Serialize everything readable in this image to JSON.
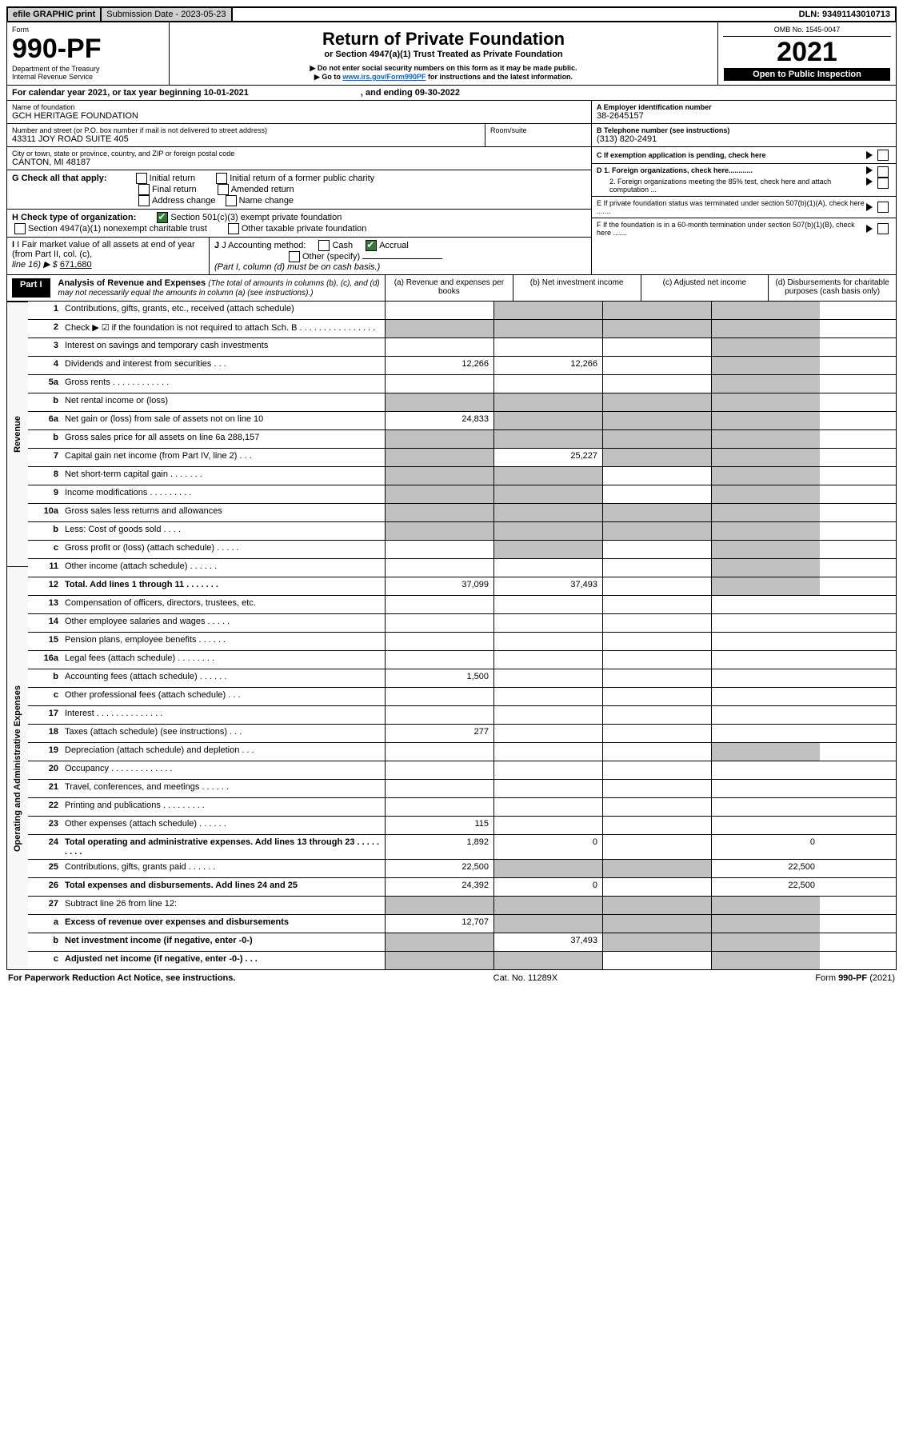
{
  "topbar": {
    "efile_label": "efile GRAPHIC print",
    "submission_label": "Submission Date - 2023-05-23",
    "dln_label": "DLN: 93491143010713"
  },
  "header": {
    "form_word": "Form",
    "form_no": "990-PF",
    "dept": "Department of the Treasury",
    "irs": "Internal Revenue Service",
    "title": "Return of Private Foundation",
    "subtitle": "or Section 4947(a)(1) Trust Treated as Private Foundation",
    "instr1": "▶ Do not enter social security numbers on this form as it may be made public.",
    "instr2_pre": "▶ Go to ",
    "instr2_link": "www.irs.gov/Form990PF",
    "instr2_post": " for instructions and the latest information.",
    "omb": "OMB No. 1545-0047",
    "year": "2021",
    "open": "Open to Public Inspection"
  },
  "cal": {
    "line": "For calendar year 2021, or tax year beginning 10-01-2021",
    "mid": ", and ending 09-30-2022"
  },
  "foundation": {
    "name_label": "Name of foundation",
    "name": "GCH HERITAGE FOUNDATION",
    "addr_label": "Number and street (or P.O. box number if mail is not delivered to street address)",
    "addr": "43311 JOY ROAD SUITE 405",
    "room_label": "Room/suite",
    "city_label": "City or town, state or province, country, and ZIP or foreign postal code",
    "city": "CANTON, MI  48187",
    "a_label": "A Employer identification number",
    "a_val": "38-2645157",
    "b_label": "B Telephone number (see instructions)",
    "b_val": "(313) 820-2491",
    "c_label": "C If exemption application is pending, check here",
    "d1": "D 1. Foreign organizations, check here............",
    "d2": "2. Foreign organizations meeting the 85% test, check here and attach computation ...",
    "e": "E  If private foundation status was terminated under section 507(b)(1)(A), check here .......",
    "f": "F  If the foundation is in a 60-month termination under section 507(b)(1)(B), check here .......",
    "g_label": "G Check all that apply:",
    "g_opts": [
      "Initial return",
      "Initial return of a former public charity",
      "Final return",
      "Amended return",
      "Address change",
      "Name change"
    ],
    "h_label": "H Check type of organization:",
    "h1": "Section 501(c)(3) exempt private foundation",
    "h2": "Section 4947(a)(1) nonexempt charitable trust",
    "h3": "Other taxable private foundation",
    "i_label": "I Fair market value of all assets at end of year (from Part II, col. (c),",
    "i_line": "line 16) ▶ $",
    "i_val": "671,680",
    "j_label": "J Accounting method:",
    "j_cash": "Cash",
    "j_accrual": "Accrual",
    "j_other": "Other (specify)",
    "j_note": "(Part I, column (d) must be on cash basis.)"
  },
  "part1": {
    "tag": "Part I",
    "title": "Analysis of Revenue and Expenses",
    "title_note": " (The total of amounts in columns (b), (c), and (d) may not necessarily equal the amounts in column (a) (see instructions).)",
    "col_a": "(a)  Revenue and expenses per books",
    "col_b": "(b)  Net investment income",
    "col_c": "(c)  Adjusted net income",
    "col_d": "(d)  Disbursements for charitable purposes (cash basis only)"
  },
  "sidelabels": {
    "rev": "Revenue",
    "op": "Operating and Administrative Expenses"
  },
  "lines": [
    {
      "n": "1",
      "d": "Contributions, gifts, grants, etc., received (attach schedule)",
      "a": "",
      "b": "gray",
      "c": "gray",
      "dd": "gray"
    },
    {
      "n": "2",
      "d": "Check ▶ ☑ if the foundation is not required to attach Sch. B  .  .  .  .  .  .  .  .  .  .  .  .  .  .  .  .",
      "a": "gray",
      "b": "gray",
      "c": "gray",
      "dd": "gray",
      "bold_not": true
    },
    {
      "n": "3",
      "d": "Interest on savings and temporary cash investments",
      "a": "",
      "b": "",
      "c": "",
      "dd": "gray"
    },
    {
      "n": "4",
      "d": "Dividends and interest from securities  .  .  .",
      "a": "12,266",
      "b": "12,266",
      "c": "",
      "dd": "gray"
    },
    {
      "n": "5a",
      "d": "Gross rents  .  .  .  .  .  .  .  .  .  .  .  .",
      "a": "",
      "b": "",
      "c": "",
      "dd": "gray"
    },
    {
      "n": "b",
      "d": "Net rental income or (loss)  ",
      "a": "gray",
      "b": "gray",
      "c": "gray",
      "dd": "gray"
    },
    {
      "n": "6a",
      "d": "Net gain or (loss) from sale of assets not on line 10",
      "a": "24,833",
      "b": "gray",
      "c": "gray",
      "dd": "gray"
    },
    {
      "n": "b",
      "d": "Gross sales price for all assets on line 6a                   288,157",
      "a": "gray",
      "b": "gray",
      "c": "gray",
      "dd": "gray"
    },
    {
      "n": "7",
      "d": "Capital gain net income (from Part IV, line 2)  .  .  .",
      "a": "gray",
      "b": "25,227",
      "c": "gray",
      "dd": "gray"
    },
    {
      "n": "8",
      "d": "Net short-term capital gain  .  .  .  .  .  .  .",
      "a": "gray",
      "b": "gray",
      "c": "",
      "dd": "gray"
    },
    {
      "n": "9",
      "d": "Income modifications  .  .  .  .  .  .  .  .  .",
      "a": "gray",
      "b": "gray",
      "c": "",
      "dd": "gray"
    },
    {
      "n": "10a",
      "d": "Gross sales less returns and allowances",
      "a": "gray",
      "b": "gray",
      "c": "gray",
      "dd": "gray"
    },
    {
      "n": "b",
      "d": "Less: Cost of goods sold  .  .  .  .",
      "a": "gray",
      "b": "gray",
      "c": "gray",
      "dd": "gray"
    },
    {
      "n": "c",
      "d": "Gross profit or (loss) (attach schedule)  .  .  .  .  .",
      "a": "",
      "b": "gray",
      "c": "",
      "dd": "gray"
    },
    {
      "n": "11",
      "d": "Other income (attach schedule)  .  .  .  .  .  .",
      "a": "",
      "b": "",
      "c": "",
      "dd": "gray"
    },
    {
      "n": "12",
      "d": "Total. Add lines 1 through 11  .  .  .  .  .  .  .",
      "a": "37,099",
      "b": "37,493",
      "c": "",
      "dd": "gray",
      "bold": true
    }
  ],
  "exp": [
    {
      "n": "13",
      "d": "Compensation of officers, directors, trustees, etc."
    },
    {
      "n": "14",
      "d": "Other employee salaries and wages  .  .  .  .  ."
    },
    {
      "n": "15",
      "d": "Pension plans, employee benefits  .  .  .  .  .  ."
    },
    {
      "n": "16a",
      "d": "Legal fees (attach schedule)  .  .  .  .  .  .  .  ."
    },
    {
      "n": "b",
      "d": "Accounting fees (attach schedule)  .  .  .  .  .  .",
      "a": "1,500"
    },
    {
      "n": "c",
      "d": "Other professional fees (attach schedule)  .  .  ."
    },
    {
      "n": "17",
      "d": "Interest  .  .  .  .  .  .  .  .  .  .  .  .  .  ."
    },
    {
      "n": "18",
      "d": "Taxes (attach schedule) (see instructions)  .  .  .",
      "a": "277"
    },
    {
      "n": "19",
      "d": "Depreciation (attach schedule) and depletion  .  .  .",
      "dd": "gray"
    },
    {
      "n": "20",
      "d": "Occupancy  .  .  .  .  .  .  .  .  .  .  .  .  ."
    },
    {
      "n": "21",
      "d": "Travel, conferences, and meetings  .  .  .  .  .  ."
    },
    {
      "n": "22",
      "d": "Printing and publications  .  .  .  .  .  .  .  .  ."
    },
    {
      "n": "23",
      "d": "Other expenses (attach schedule)  .  .  .  .  .  .",
      "a": "115"
    },
    {
      "n": "24",
      "d": "Total operating and administrative expenses. Add lines 13 through 23  .  .  .  .  .  .  .  .  .",
      "a": "1,892",
      "b": "0",
      "dd": "0",
      "bold": true
    },
    {
      "n": "25",
      "d": "Contributions, gifts, grants paid  .  .  .  .  .  .",
      "a": "22,500",
      "b": "gray",
      "c": "gray",
      "dd": "22,500"
    },
    {
      "n": "26",
      "d": "Total expenses and disbursements. Add lines 24 and 25",
      "a": "24,392",
      "b": "0",
      "dd": "22,500",
      "bold": true
    }
  ],
  "net": [
    {
      "n": "27",
      "d": "Subtract line 26 from line 12:",
      "a": "gray",
      "b": "gray",
      "c": "gray",
      "dd": "gray"
    },
    {
      "n": "a",
      "d": "Excess of revenue over expenses and disbursements",
      "a": "12,707",
      "b": "gray",
      "c": "gray",
      "dd": "gray",
      "bold": true
    },
    {
      "n": "b",
      "d": "Net investment income (if negative, enter -0-)",
      "a": "gray",
      "b": "37,493",
      "c": "gray",
      "dd": "gray",
      "bold": true
    },
    {
      "n": "c",
      "d": "Adjusted net income (if negative, enter -0-)  .  .  .",
      "a": "gray",
      "b": "gray",
      "c": "",
      "dd": "gray",
      "bold": true
    }
  ],
  "footer": {
    "left": "For Paperwork Reduction Act Notice, see instructions.",
    "mid": "Cat. No. 11289X",
    "right": "Form 990-PF (2021)"
  }
}
